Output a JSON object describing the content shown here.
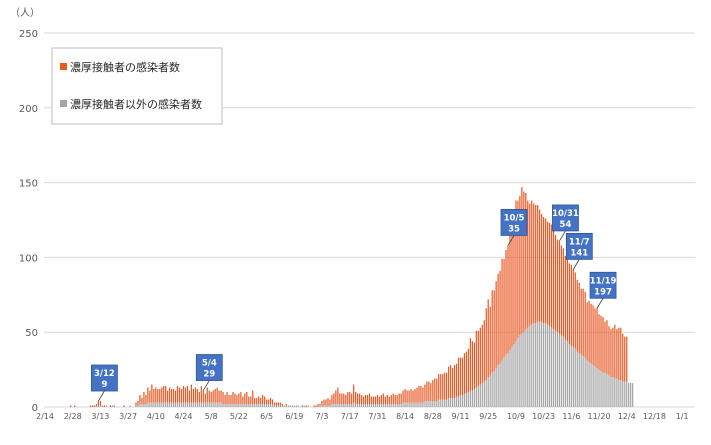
{
  "chart_data": {
    "type": "bar",
    "stacked": true,
    "unit_label": "（人）",
    "ylim": [
      0,
      250
    ],
    "y_ticks": [
      0,
      50,
      100,
      150,
      200,
      250
    ],
    "grid": true,
    "legend_position": "top-left",
    "x_tick_labels": [
      "2/14",
      "2/28",
      "3/13",
      "3/27",
      "4/10",
      "4/24",
      "5/8",
      "5/22",
      "6/5",
      "6/19",
      "7/3",
      "7/17",
      "7/31",
      "8/14",
      "8/28",
      "9/11",
      "9/25",
      "10/9",
      "10/23",
      "11/6",
      "11/20",
      "12/4",
      "12/18",
      "1/1"
    ],
    "colors": {
      "close_contact": "#e85a26",
      "other": "#a6a6a6",
      "callout_bg": "#4472c4"
    },
    "series": [
      {
        "name": "濃厚接触者の感染者数"
      },
      {
        "name": "濃厚接触者以外の感染者数"
      }
    ],
    "start_date": "2020-02-14",
    "days": 329,
    "annotations": [
      {
        "date": "3/12",
        "total": "9",
        "day_index": 27
      },
      {
        "date": "5/4",
        "total": "29",
        "day_index": 80
      },
      {
        "date": "10/5",
        "total": "35",
        "day_index": 234
      },
      {
        "date": "10/31",
        "total": "54",
        "day_index": 260
      },
      {
        "date": "11/7",
        "total": "141",
        "day_index": 267
      },
      {
        "date": "11/19",
        "total": "197",
        "day_index": 279
      }
    ],
    "series_values": [
      [
        0,
        0,
        0,
        0,
        0,
        0,
        0,
        0,
        0,
        0,
        0,
        0,
        0,
        1,
        0,
        1,
        0,
        0,
        0,
        0,
        0,
        0,
        0,
        1,
        1,
        1,
        1,
        3,
        3,
        0,
        1,
        0,
        0,
        1,
        0,
        1,
        0,
        0,
        0,
        0,
        1,
        0,
        0,
        0,
        0,
        0,
        2,
        3,
        6,
        4,
        8,
        6,
        10,
        8,
        12,
        9,
        10,
        9,
        9,
        10,
        11,
        11,
        8,
        10,
        9,
        9,
        8,
        11,
        10,
        9,
        11,
        10,
        11,
        8,
        12,
        9,
        10,
        9,
        7,
        11,
        8,
        6,
        10,
        8,
        7,
        8,
        9,
        10,
        8,
        8,
        8,
        6,
        8,
        6,
        6,
        8,
        7,
        6,
        7,
        8,
        5,
        7,
        8,
        5,
        5,
        9,
        4,
        4,
        5,
        4,
        6,
        5,
        3,
        3,
        4,
        3,
        2,
        2,
        2,
        2,
        1,
        0,
        1,
        0,
        0,
        0,
        0,
        0,
        0,
        0,
        1,
        0,
        1,
        0,
        0,
        0,
        1,
        1,
        2,
        1,
        3,
        4,
        4,
        5,
        4,
        6,
        7,
        9,
        11,
        7,
        7,
        7,
        6,
        8,
        8,
        7,
        12,
        8,
        7,
        7,
        6,
        5,
        6,
        6,
        7,
        5,
        5,
        5,
        6,
        5,
        6,
        7,
        5,
        6,
        5,
        6,
        7,
        6,
        6,
        7,
        7,
        8,
        9,
        8,
        8,
        9,
        8,
        9,
        10,
        11,
        11,
        10,
        11,
        13,
        13,
        12,
        14,
        15,
        15,
        17,
        17,
        17,
        18,
        18,
        21,
        22,
        20,
        22,
        22,
        26,
        25,
        25,
        27,
        28,
        29,
        35,
        33,
        31,
        38,
        37,
        38,
        39,
        41,
        48,
        52,
        46,
        55,
        54,
        58,
        61,
        62,
        68,
        66,
        70,
        72,
        78,
        81,
        87,
        94,
        92,
        93,
        98,
        94,
        91,
        85,
        82,
        83,
        80,
        79,
        78,
        75,
        72,
        71,
        70,
        69,
        69,
        69,
        67,
        64,
        62,
        62,
        60,
        59,
        56,
        55,
        54,
        54,
        52,
        51,
        48,
        47,
        44,
        45,
        44,
        39,
        41,
        40,
        40,
        39,
        40,
        37,
        37,
        37,
        34,
        36,
        33,
        32,
        33,
        36,
        33,
        35,
        35,
        32,
        30,
        30
      ],
      [
        0,
        0,
        0,
        0,
        0,
        0,
        0,
        0,
        0,
        0,
        0,
        0,
        0,
        0,
        0,
        0,
        0,
        0,
        0,
        0,
        0,
        0,
        0,
        0,
        0,
        0,
        1,
        1,
        1,
        1,
        0,
        1,
        0,
        0,
        1,
        0,
        0,
        0,
        0,
        0,
        0,
        0,
        0,
        1,
        0,
        0,
        1,
        1,
        2,
        2,
        2,
        2,
        3,
        3,
        3,
        3,
        3,
        3,
        3,
        3,
        3,
        3,
        3,
        3,
        3,
        3,
        3,
        3,
        3,
        3,
        3,
        3,
        3,
        3,
        3,
        3,
        3,
        3,
        3,
        3,
        3,
        3,
        3,
        3,
        3,
        3,
        3,
        3,
        3,
        3,
        2,
        2,
        2,
        2,
        2,
        2,
        2,
        2,
        2,
        2,
        2,
        2,
        2,
        2,
        2,
        2,
        2,
        2,
        2,
        2,
        2,
        2,
        2,
        2,
        2,
        2,
        1,
        1,
        1,
        1,
        1,
        1,
        1,
        1,
        1,
        1,
        1,
        1,
        1,
        0,
        0,
        1,
        0,
        1,
        0,
        0,
        0,
        0,
        0,
        1,
        1,
        1,
        1,
        1,
        1,
        2,
        2,
        2,
        2,
        2,
        2,
        2,
        2,
        2,
        2,
        2,
        3,
        2,
        2,
        2,
        2,
        2,
        2,
        2,
        2,
        2,
        2,
        2,
        2,
        2,
        2,
        2,
        2,
        2,
        2,
        2,
        2,
        2,
        2,
        2,
        2,
        3,
        3,
        3,
        3,
        3,
        3,
        3,
        3,
        3,
        3,
        3,
        4,
        4,
        4,
        4,
        4,
        4,
        4,
        5,
        5,
        5,
        5,
        5,
        6,
        6,
        6,
        6,
        7,
        7,
        8,
        8,
        9,
        9,
        10,
        11,
        11,
        12,
        13,
        14,
        15,
        16,
        17,
        18,
        20,
        21,
        23,
        24,
        26,
        28,
        29,
        31,
        33,
        35,
        36,
        38,
        40,
        42,
        44,
        46,
        48,
        49,
        50,
        52,
        53,
        54,
        55,
        56,
        56,
        57,
        57,
        57,
        56,
        56,
        55,
        54,
        53,
        52,
        51,
        50,
        49,
        48,
        47,
        45,
        44,
        42,
        41,
        40,
        39,
        37,
        36,
        35,
        34,
        33,
        31,
        30,
        29,
        28,
        27,
        26,
        25,
        24,
        23,
        23,
        22,
        21,
        20,
        20,
        19,
        19,
        18,
        18,
        17,
        17,
        17,
        16,
        16,
        16
      ]
    ]
  }
}
